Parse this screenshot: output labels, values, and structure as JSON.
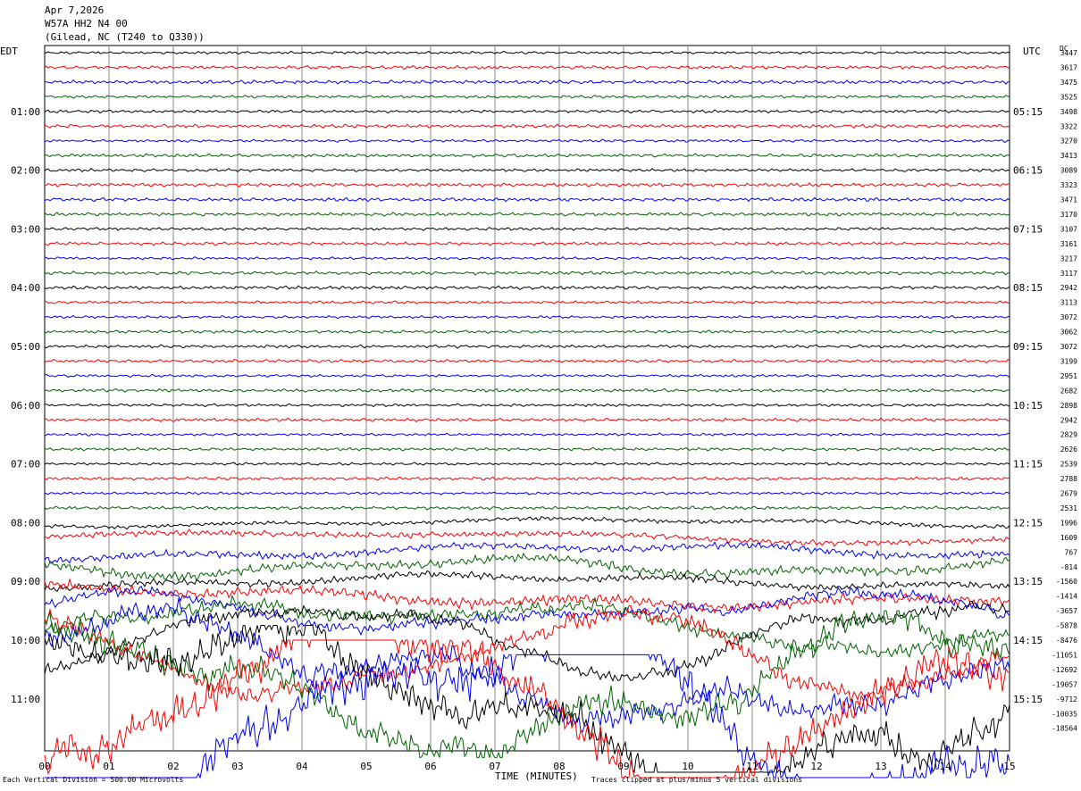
{
  "header": {
    "date": "Apr 7,2026",
    "station": "W57A HH2 N4 00",
    "location": "(Gilead, NC (T240 to Q330))"
  },
  "chart_data": {
    "type": "line",
    "title": "Apr 7,2026",
    "left_axis_label": "EDT",
    "right_axis_label": "UTC",
    "dc_label": "DC",
    "xlabel": "TIME (MINUTES)",
    "xlim": [
      0,
      15
    ],
    "x_ticks": [
      "00",
      "01",
      "02",
      "03",
      "04",
      "05",
      "06",
      "07",
      "08",
      "09",
      "10",
      "11",
      "12",
      "13",
      "14",
      "15"
    ],
    "trace_colors": [
      "#000000",
      "#ff0000",
      "#0000ff",
      "#006400"
    ],
    "left_hour_labels": [
      "01:00",
      "02:00",
      "03:00",
      "04:00",
      "05:00",
      "06:00",
      "07:00",
      "08:00",
      "09:00",
      "10:00",
      "11:00"
    ],
    "right_hour_labels": [
      "05:15",
      "06:15",
      "07:15",
      "08:15",
      "09:15",
      "10:15",
      "11:15",
      "12:15",
      "13:15",
      "14:15",
      "15:15"
    ],
    "dc_offsets": [
      "3447",
      "3617",
      "3475",
      "3525",
      "3498",
      "3322",
      "3270",
      "3413",
      "3089",
      "3323",
      "3471",
      "3170",
      "3107",
      "3161",
      "3217",
      "3117",
      "2942",
      "3113",
      "3072",
      "3062",
      "3072",
      "3199",
      "2951",
      "2682",
      "2898",
      "2942",
      "2829",
      "2626",
      "2539",
      "2788",
      "2679",
      "2531",
      "1996",
      "1609",
      "767",
      "-814",
      "-1560",
      "-1414",
      "-3657",
      "-5878",
      "-8476",
      "-11051",
      "-12692",
      "-19057",
      "-9712",
      "-10035",
      "-18564"
    ],
    "footer_left": "Each Vertical Division = 500.00 Microvolts",
    "footer_right": "Traces clipped at plus/minus 5 vertical divisions"
  }
}
